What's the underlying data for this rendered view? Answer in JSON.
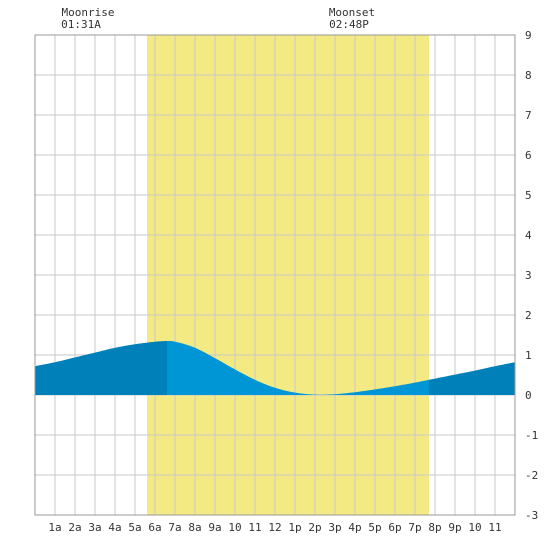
{
  "chart_data": {
    "type": "area",
    "title": "",
    "xlabel": "",
    "ylabel": "",
    "x_tick_labels": [
      "1a",
      "2a",
      "3a",
      "4a",
      "5a",
      "6a",
      "7a",
      "8a",
      "9a",
      "10",
      "11",
      "12",
      "1p",
      "2p",
      "3p",
      "4p",
      "5p",
      "6p",
      "7p",
      "8p",
      "9p",
      "10",
      "11"
    ],
    "x_range_hours": [
      0,
      24
    ],
    "y_range": [
      -3,
      9
    ],
    "y_ticks": [
      -3,
      -2,
      -1,
      0,
      1,
      2,
      3,
      4,
      5,
      6,
      7,
      8,
      9
    ],
    "grid": true,
    "daylight_hours": [
      5.6,
      19.7
    ],
    "tide_series": {
      "x_hours": [
        0,
        1,
        2,
        3,
        4,
        5,
        6,
        6.6,
        7,
        8,
        9,
        10,
        11,
        12,
        13,
        14,
        15,
        16,
        17,
        18,
        19,
        20,
        21,
        22,
        23,
        24
      ],
      "y": [
        0.72,
        0.82,
        0.94,
        1.06,
        1.18,
        1.27,
        1.33,
        1.35,
        1.33,
        1.18,
        0.92,
        0.64,
        0.38,
        0.18,
        0.06,
        0.01,
        0.02,
        0.07,
        0.14,
        0.22,
        0.31,
        0.41,
        0.51,
        0.61,
        0.72,
        0.82
      ]
    },
    "annotations": [
      {
        "label": "Moonrise",
        "time": "01:31A"
      },
      {
        "label": "Moonset",
        "time": "02:48P"
      }
    ],
    "colors": {
      "daylight": "#f4ea84",
      "tide_day": "#0096d6",
      "tide_night": "#0080b8",
      "grid": "#c8c8c8",
      "frame": "#999999"
    }
  }
}
